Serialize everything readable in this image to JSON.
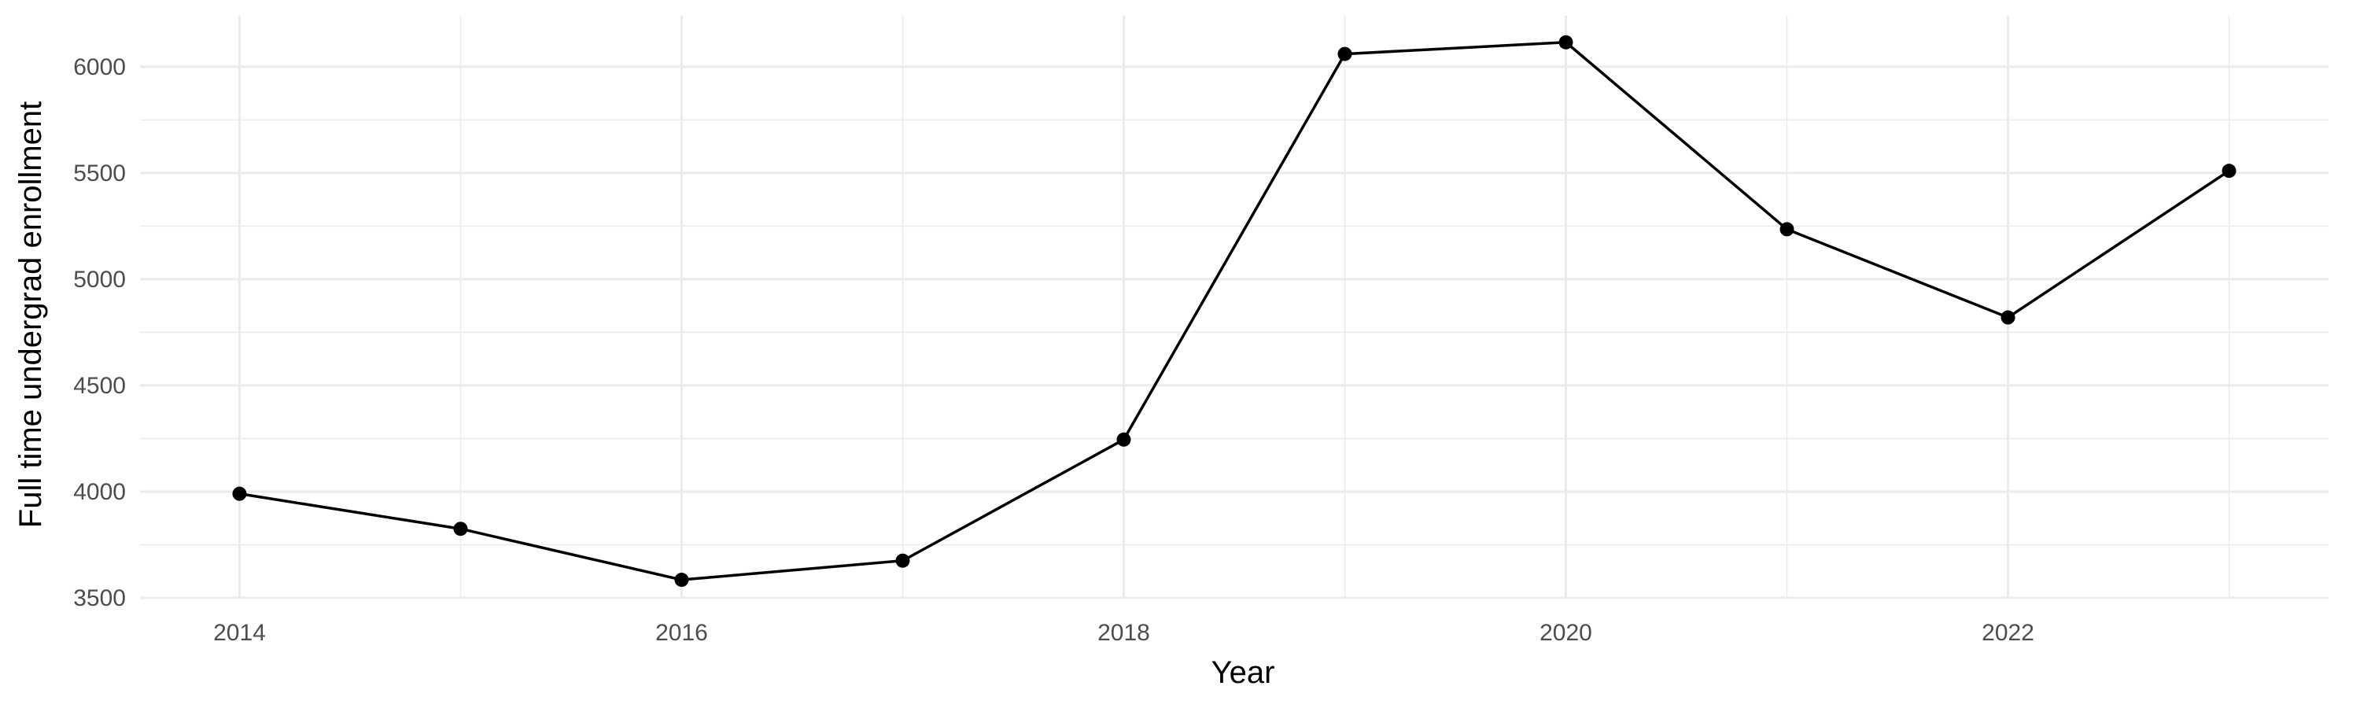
{
  "chart_data": {
    "type": "line",
    "title": "",
    "xlabel": "Year",
    "ylabel": "Full time undergrad enrollment",
    "x": [
      2014,
      2015,
      2016,
      2017,
      2018,
      2019,
      2020,
      2021,
      2022,
      2023
    ],
    "series": [
      {
        "values": [
          3990,
          3825,
          3585,
          3675,
          4245,
          6060,
          6115,
          5235,
          4820,
          5510
        ]
      }
    ],
    "xlim": [
      2013.55,
      2023.45
    ],
    "ylim": [
      3500,
      6240
    ],
    "x_ticks": [
      "2014",
      "2016",
      "2018",
      "2020",
      "2022"
    ],
    "y_ticks": [
      "3500",
      "4000",
      "4500",
      "5000",
      "5500",
      "6000"
    ],
    "grid": true,
    "legend": "none",
    "colors": {
      "line": "#000000",
      "grid": "#ebebeb",
      "background": "#ffffff"
    }
  }
}
